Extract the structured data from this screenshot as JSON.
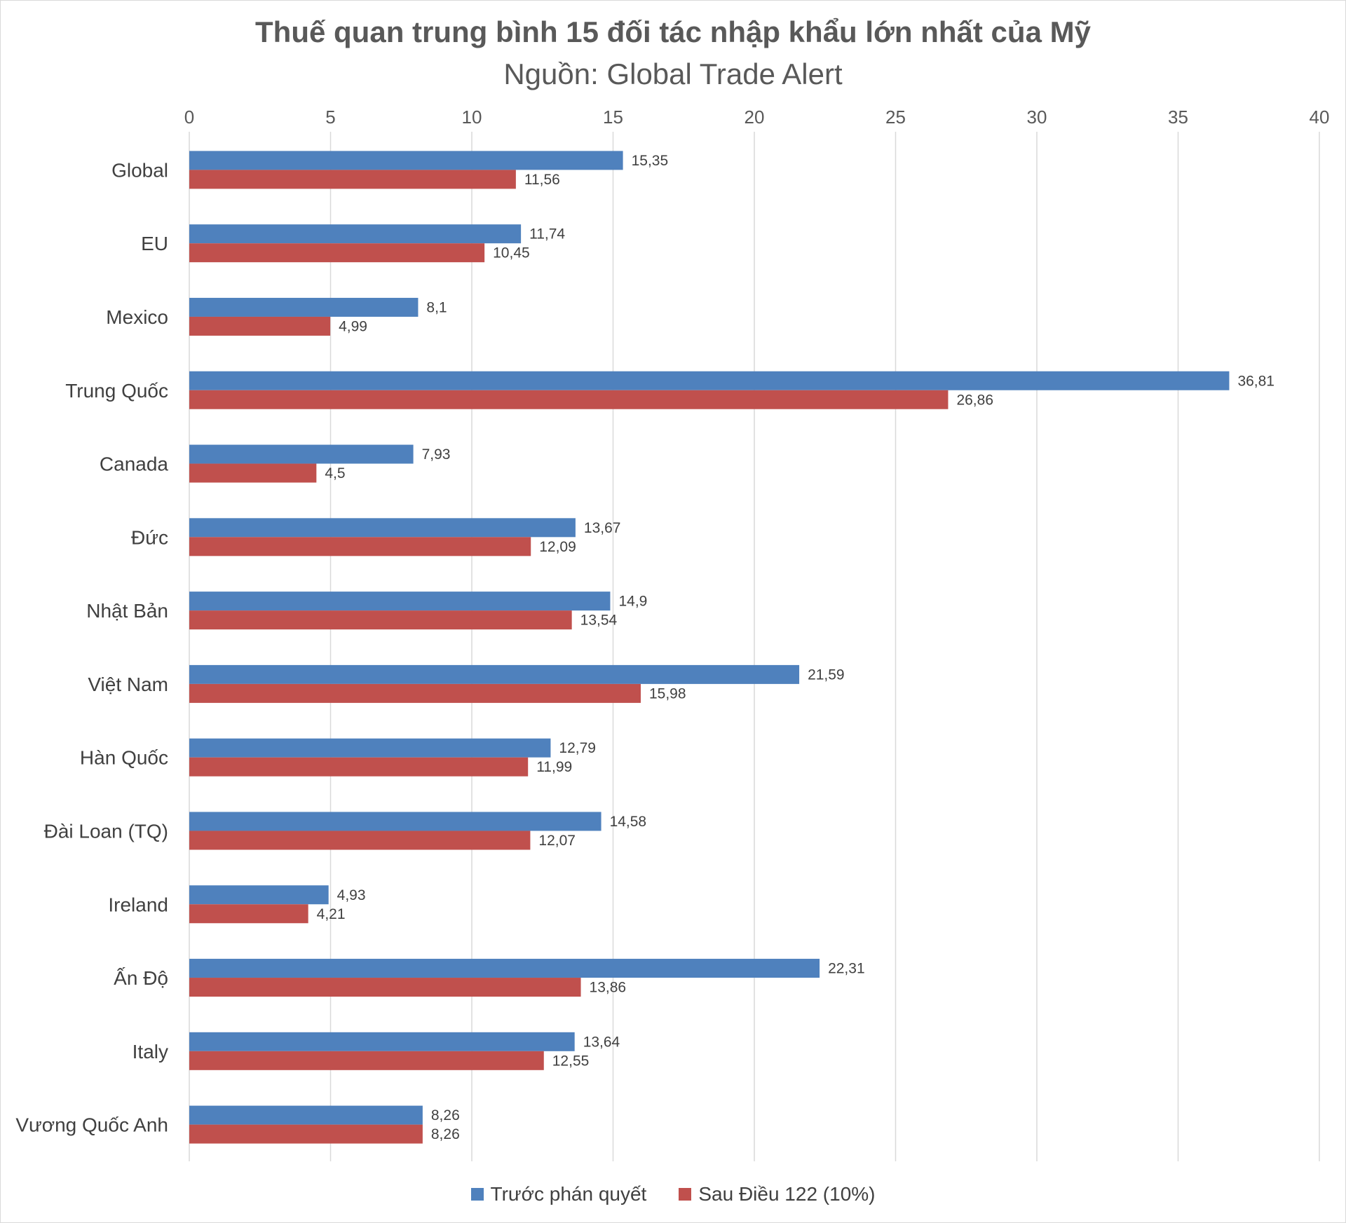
{
  "chart_data": {
    "type": "bar",
    "orientation": "horizontal",
    "title": "Thuế quan trung bình 15 đối tác nhập khẩu lớn nhất của Mỹ",
    "subtitle": "Nguồn: Global Trade Alert",
    "xlim": [
      0,
      40
    ],
    "xticks": [
      "0",
      "5",
      "10",
      "15",
      "20",
      "25",
      "30",
      "35",
      "40"
    ],
    "grid": true,
    "legend_position": "bottom",
    "categories": [
      "Global",
      "EU",
      "Mexico",
      "Trung Quốc",
      "Canada",
      "Đức",
      "Nhật Bản",
      "Việt Nam",
      "Hàn Quốc",
      "Đài Loan (TQ)",
      "Ireland",
      "Ấn Độ",
      "Italy",
      "Vương Quốc Anh"
    ],
    "series": [
      {
        "name": "Trước phán quyết",
        "color": "#4f81bd",
        "values": [
          15.35,
          11.74,
          8.1,
          36.81,
          7.93,
          13.67,
          14.9,
          21.59,
          12.79,
          14.58,
          4.93,
          22.31,
          13.64,
          8.26
        ],
        "labels": [
          "15,35",
          "11,74",
          "8,1",
          "36,81",
          "7,93",
          "13,67",
          "14,9",
          "21,59",
          "12,79",
          "14,58",
          "4,93",
          "22,31",
          "13,64",
          "8,26"
        ]
      },
      {
        "name": "Sau Điều 122 (10%)",
        "color": "#c0504d",
        "values": [
          11.56,
          10.45,
          4.99,
          26.86,
          4.5,
          12.09,
          13.54,
          15.98,
          11.99,
          12.07,
          4.21,
          13.86,
          12.55,
          8.26
        ],
        "labels": [
          "11,56",
          "10,45",
          "4,99",
          "26,86",
          "4,5",
          "12,09",
          "13,54",
          "15,98",
          "11,99",
          "12,07",
          "4,21",
          "13,86",
          "12,55",
          "8,26"
        ]
      }
    ]
  }
}
